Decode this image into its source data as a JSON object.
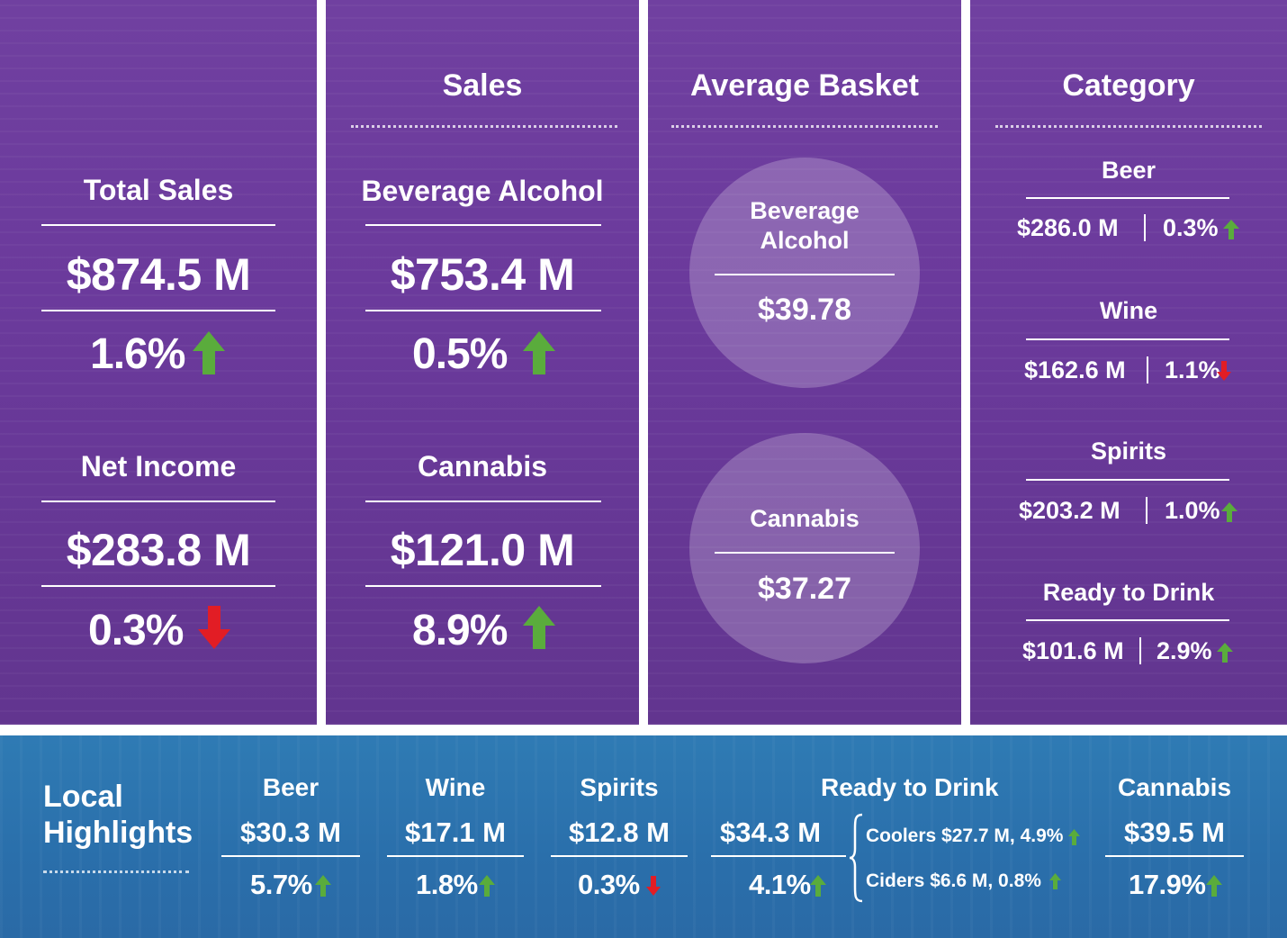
{
  "colors": {
    "panel_purple": "#6b3a9c",
    "bottom_blue": "#2a6fab",
    "up_green": "#5aac3c",
    "down_red": "#e21d25"
  },
  "col1": {
    "total_sales": {
      "label": "Total Sales",
      "value": "$874.5 M",
      "change": "1.6%",
      "direction": "up"
    },
    "net_income": {
      "label": "Net Income",
      "value": "$283.8 M",
      "change": "0.3%",
      "direction": "down"
    }
  },
  "col2": {
    "heading": "Sales",
    "beverage_alcohol": {
      "label": "Beverage Alcohol",
      "value": "$753.4 M",
      "change": "0.5%",
      "direction": "up"
    },
    "cannabis": {
      "label": "Cannabis",
      "value": "$121.0 M",
      "change": "8.9%",
      "direction": "up"
    }
  },
  "col3": {
    "heading": "Average Basket",
    "beverage_alcohol": {
      "label_line1": "Beverage",
      "label_line2": "Alcohol",
      "value": "$39.78"
    },
    "cannabis": {
      "label": "Cannabis",
      "value": "$37.27"
    }
  },
  "col4": {
    "heading": "Category",
    "items": [
      {
        "name": "Beer",
        "value": "$286.0 M",
        "change": "0.3%",
        "direction": "up"
      },
      {
        "name": "Wine",
        "value": "$162.6 M",
        "change": "1.1%",
        "direction": "down"
      },
      {
        "name": "Spirits",
        "value": "$203.2 M",
        "change": "1.0%",
        "direction": "up"
      },
      {
        "name": "Ready to Drink",
        "value": "$101.6 M",
        "change": "2.9%",
        "direction": "up"
      }
    ]
  },
  "local": {
    "title_line1": "Local",
    "title_line2": "Highlights",
    "items": [
      {
        "name": "Beer",
        "value": "$30.3 M",
        "change": "5.7%",
        "direction": "up"
      },
      {
        "name": "Wine",
        "value": "$17.1 M",
        "change": "1.8%",
        "direction": "up"
      },
      {
        "name": "Spirits",
        "value": "$12.8 M",
        "change": "0.3%",
        "direction": "down"
      },
      {
        "name": "Ready to Drink",
        "value": "$34.3 M",
        "change": "4.1%",
        "direction": "up"
      },
      {
        "name": "Cannabis",
        "value": "$39.5 M",
        "change": "17.9%",
        "direction": "up"
      }
    ],
    "rtd_breakdown": {
      "coolers": {
        "text": "Coolers $27.7 M, 4.9%",
        "direction": "up"
      },
      "ciders": {
        "text": "Ciders $6.6 M, 0.8%",
        "direction": "up"
      }
    }
  }
}
